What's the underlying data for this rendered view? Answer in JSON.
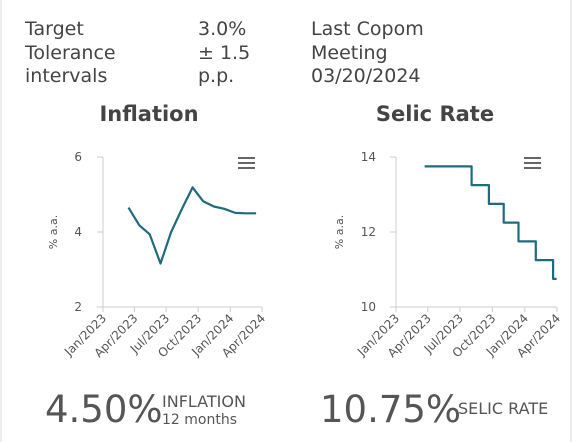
{
  "info": {
    "target_label": [
      "Target",
      "Tolerance",
      "intervals"
    ],
    "target_value": [
      "3.0%",
      "± 1.5",
      "p.p."
    ],
    "copom_label": [
      "Last Copom",
      "Meeting",
      "03/20/2024"
    ]
  },
  "chart_data": [
    {
      "type": "line",
      "title": "Inflation",
      "ylabel": "% a.a.",
      "xlabel": "",
      "ylim": [
        2,
        6
      ],
      "yticks": [
        "2",
        "4",
        "6"
      ],
      "xticks": [
        "Jan/2023",
        "Apr/2023",
        "Jul/2023",
        "Oct/2023",
        "Jan/2024",
        "Apr/2024"
      ],
      "series": [
        {
          "color": "#1f6b7d",
          "x": [
            "2023-03",
            "2023-04",
            "2023-05",
            "2023-06",
            "2023-07",
            "2023-08",
            "2023-09",
            "2023-10",
            "2023-11",
            "2023-12",
            "2024-01",
            "2024-02",
            "2024-03"
          ],
          "values": [
            4.65,
            4.18,
            3.94,
            3.16,
            3.99,
            4.61,
            5.19,
            4.82,
            4.68,
            4.62,
            4.51,
            4.5,
            4.5
          ]
        }
      ],
      "grid": false
    },
    {
      "type": "line",
      "step": true,
      "title": "Selic Rate",
      "ylabel": "% a.a.",
      "xlabel": "",
      "ylim": [
        10,
        14
      ],
      "yticks": [
        "10",
        "12",
        "14"
      ],
      "xticks": [
        "Jan/2023",
        "Apr/2023",
        "Jul/2023",
        "Oct/2023",
        "Jan/2024",
        "Apr/2024"
      ],
      "series": [
        {
          "color": "#1f6b7d",
          "x": [
            "2023-03-23",
            "2023-08-03",
            "2023-09-21",
            "2023-11-02",
            "2023-12-14",
            "2024-02-01",
            "2024-03-21",
            "2024-03-31"
          ],
          "values": [
            13.75,
            13.25,
            12.75,
            12.25,
            11.75,
            11.25,
            10.75,
            10.75
          ]
        }
      ],
      "grid": false
    }
  ],
  "kpis": {
    "inflation_value": "4.50%",
    "inflation_label": "INFLATION",
    "inflation_sub": "12 months",
    "selic_value": "10.75%",
    "selic_label": "SELIC RATE"
  },
  "icons": {
    "menu": "hamburger-menu-icon"
  }
}
